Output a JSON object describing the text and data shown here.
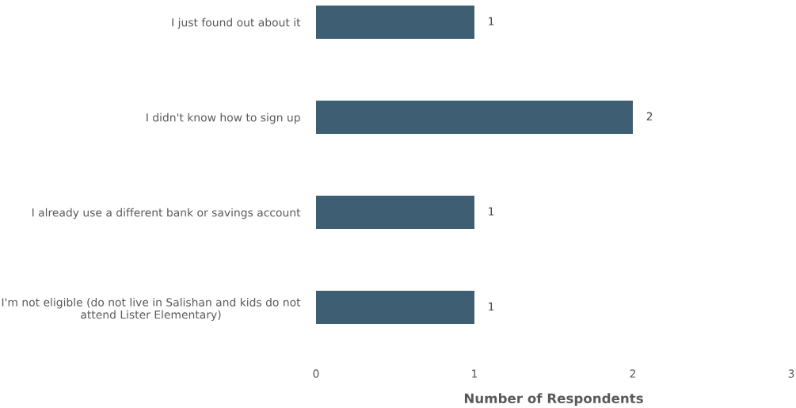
{
  "chart_data": {
    "type": "bar",
    "orientation": "horizontal",
    "categories": [
      "I just found out about it",
      "I didn't know how to sign up",
      "I already use a different bank or savings account",
      "I'm not eligible (do not live in Salishan and kids do not\nattend Lister Elementary)"
    ],
    "values": [
      1,
      2,
      1,
      1
    ],
    "color": "#3e5f73",
    "xlim": [
      0,
      3
    ],
    "xticks": [
      0,
      1,
      2,
      3
    ],
    "xlabel": "Number of Respondents",
    "data_labels": true
  }
}
